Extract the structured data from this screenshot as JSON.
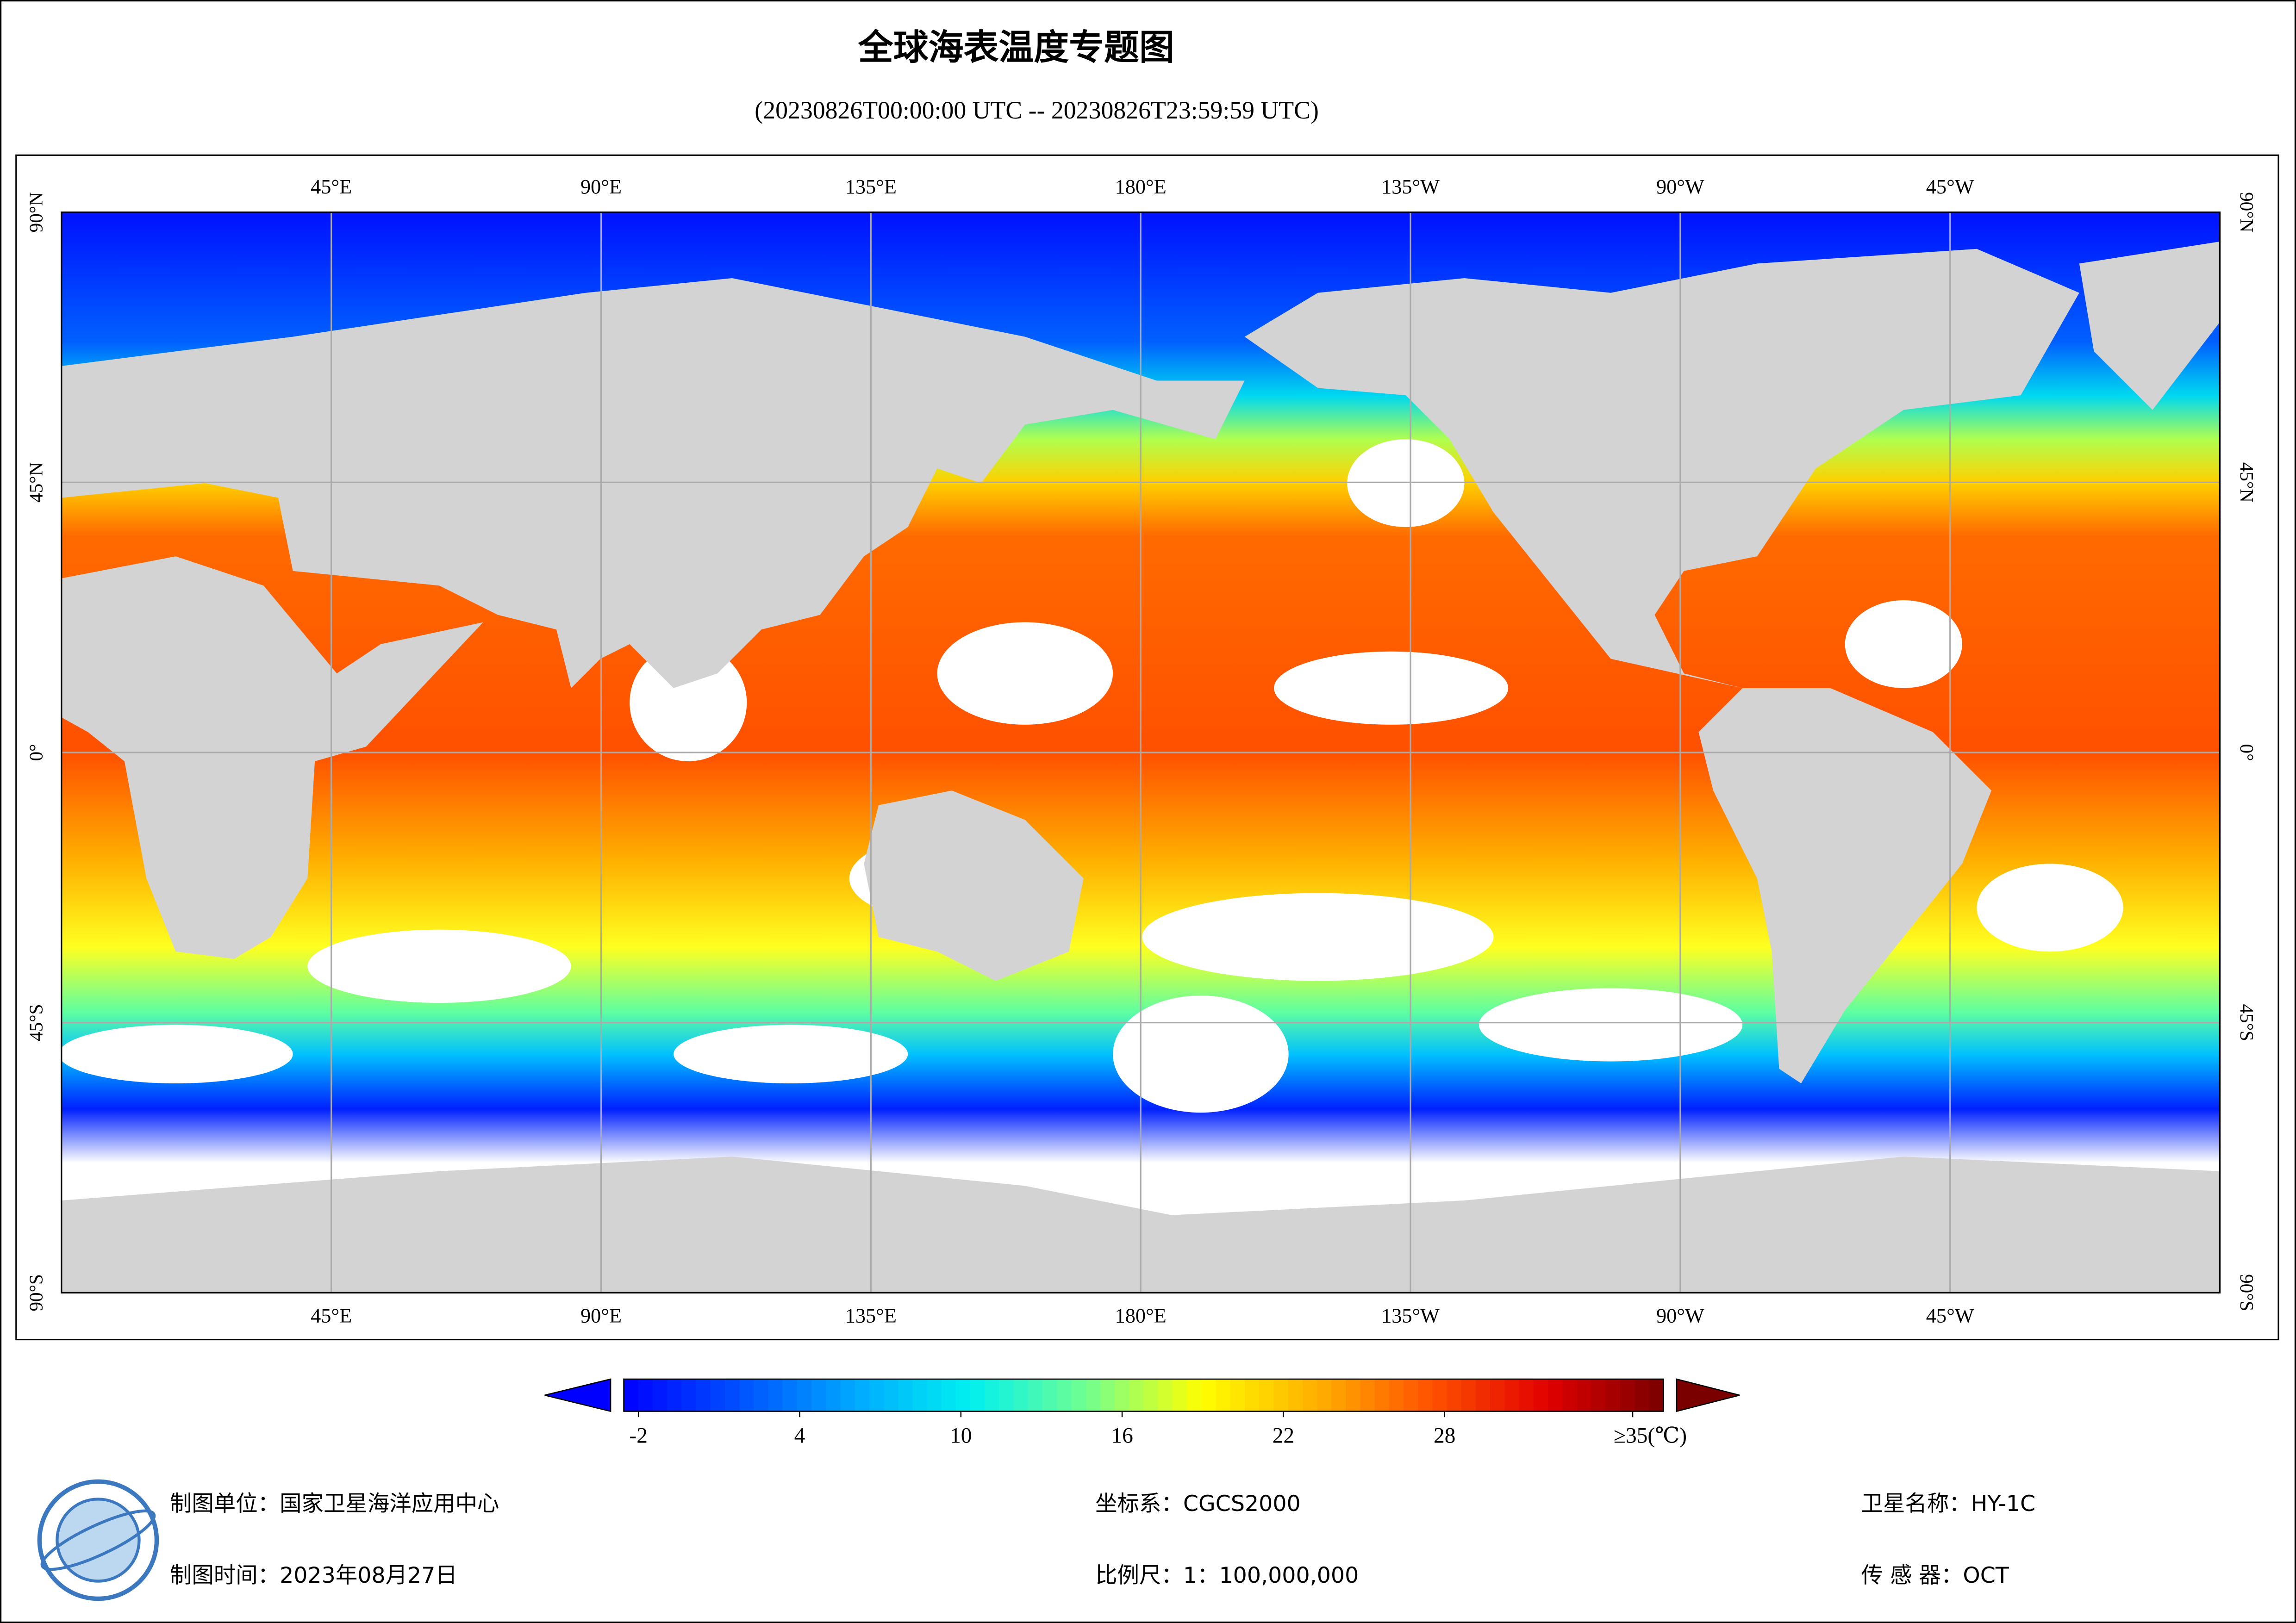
{
  "header": {
    "title": "全球海表温度专题图",
    "subtitle": "(20230826T00:00:00 UTC -- 20230826T23:59:59 UTC)"
  },
  "map": {
    "lon_ticks": [
      {
        "value": 45,
        "label": "45°E"
      },
      {
        "value": 90,
        "label": "90°E"
      },
      {
        "value": 135,
        "label": "135°E"
      },
      {
        "value": 180,
        "label": "180°E"
      },
      {
        "value": 225,
        "label": "135°W"
      },
      {
        "value": 270,
        "label": "90°W"
      },
      {
        "value": 315,
        "label": "45°W"
      }
    ],
    "lat_ticks": [
      {
        "value": 90,
        "label": "90°N"
      },
      {
        "value": 45,
        "label": "45°N"
      },
      {
        "value": 0,
        "label": "0°"
      },
      {
        "value": -45,
        "label": "45°S"
      },
      {
        "value": -90,
        "label": "90°S"
      }
    ]
  },
  "colorbar": {
    "ticks": [
      -2,
      4,
      10,
      16,
      22,
      28,
      {
        "value": 35,
        "label": "≥35(℃)"
      }
    ],
    "colors": [
      "#0000ff",
      "#0050ff",
      "#00a8ff",
      "#00f0f0",
      "#70ff90",
      "#ffff00",
      "#ffb000",
      "#ff5000",
      "#e00000",
      "#7a0000"
    ]
  },
  "footer": {
    "unit": "制图单位：国家卫星海洋应用中心",
    "date": "制图时间：2023年08月27日",
    "crs": "坐标系：CGCS2000",
    "scale": "比例尺：1：100,000,000",
    "satellite": "卫星名称：HY-1C",
    "sensor": "传 感 器：OCT"
  }
}
